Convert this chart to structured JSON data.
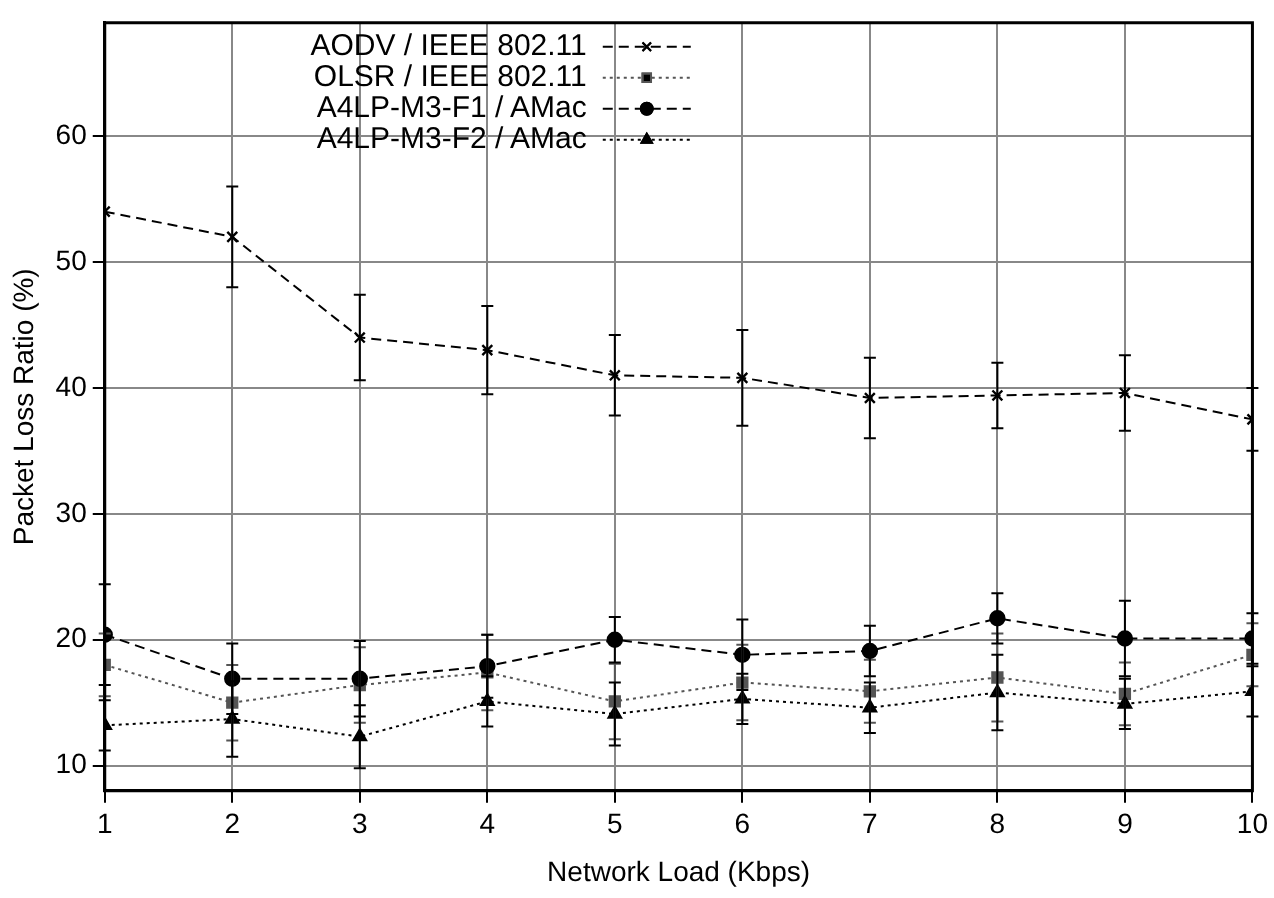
{
  "chart_data": {
    "type": "line",
    "xlabel": "Network Load (Kbps)",
    "ylabel": "Packet Loss Ratio (%)",
    "x": [
      1,
      2,
      3,
      4,
      5,
      6,
      7,
      8,
      9,
      10
    ],
    "xlim": [
      1,
      10
    ],
    "xticks": [
      1,
      2,
      3,
      4,
      5,
      6,
      7,
      8,
      9,
      10
    ],
    "ylim": [
      8,
      69
    ],
    "yticks": [
      10,
      20,
      30,
      40,
      50,
      60
    ],
    "grid": true,
    "legend": "top left",
    "series": [
      {
        "name": "AODV / IEEE 802.11",
        "color": "#000000",
        "marker": "cross",
        "line_style": "dashed",
        "values": [
          54,
          52,
          44,
          43,
          41,
          40.8,
          39.2,
          39.4,
          39.6,
          37.5
        ],
        "errors": [
          null,
          4,
          3.4,
          3.5,
          3.2,
          3.8,
          3.2,
          2.6,
          3,
          2.5
        ]
      },
      {
        "name": "OLSR / IEEE 802.11",
        "color": "#555555",
        "marker": "square",
        "line_style": "dotted",
        "values": [
          18,
          15,
          16.4,
          17.4,
          15.1,
          16.6,
          15.9,
          17,
          15.7,
          18.8
        ],
        "errors": [
          2.5,
          3,
          3,
          3,
          3,
          3,
          2.5,
          3.5,
          2.5,
          2.5
        ]
      },
      {
        "name": "A4LP-M3-F1 / AMac",
        "color": "#000000",
        "marker": "circle",
        "line_style": "dashed",
        "values": [
          20.4,
          16.9,
          16.9,
          17.9,
          20,
          18.8,
          19.1,
          21.7,
          20.1,
          20.1
        ],
        "errors": [
          4,
          2.8,
          3,
          2.5,
          1.8,
          2.8,
          2,
          2,
          3,
          2
        ]
      },
      {
        "name": "A4LP-M3-F2 / AMac",
        "color": "#000000",
        "marker": "triangle",
        "line_style": "dotted",
        "values": [
          13.2,
          13.7,
          12.3,
          15.1,
          14.1,
          15.3,
          14.6,
          15.8,
          14.9,
          15.9
        ],
        "errors": [
          2,
          3,
          2.5,
          2,
          2.5,
          2,
          2,
          3,
          2,
          2
        ]
      }
    ]
  }
}
